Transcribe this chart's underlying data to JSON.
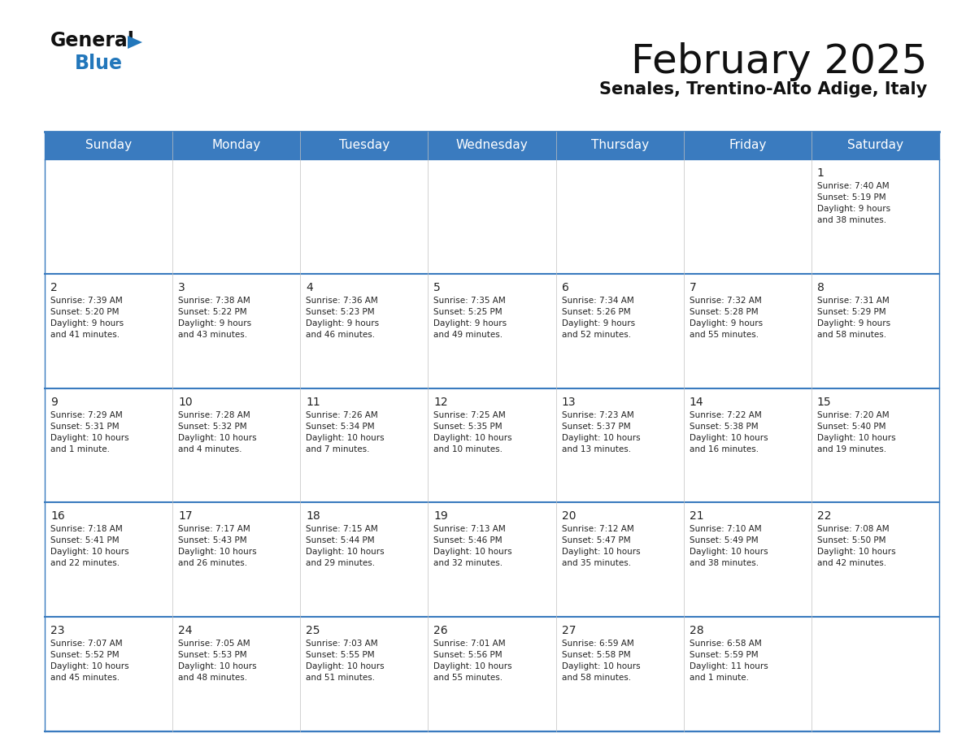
{
  "title": "February 2025",
  "subtitle": "Senales, Trentino-Alto Adige, Italy",
  "header_bg": "#3a7bbf",
  "header_text": "#ffffff",
  "cell_bg_white": "#ffffff",
  "border_color": "#3a7bbf",
  "text_color": "#222222",
  "days_of_week": [
    "Sunday",
    "Monday",
    "Tuesday",
    "Wednesday",
    "Thursday",
    "Friday",
    "Saturday"
  ],
  "weeks": [
    [
      {
        "day": null,
        "info": null
      },
      {
        "day": null,
        "info": null
      },
      {
        "day": null,
        "info": null
      },
      {
        "day": null,
        "info": null
      },
      {
        "day": null,
        "info": null
      },
      {
        "day": null,
        "info": null
      },
      {
        "day": 1,
        "info": "Sunrise: 7:40 AM\nSunset: 5:19 PM\nDaylight: 9 hours\nand 38 minutes."
      }
    ],
    [
      {
        "day": 2,
        "info": "Sunrise: 7:39 AM\nSunset: 5:20 PM\nDaylight: 9 hours\nand 41 minutes."
      },
      {
        "day": 3,
        "info": "Sunrise: 7:38 AM\nSunset: 5:22 PM\nDaylight: 9 hours\nand 43 minutes."
      },
      {
        "day": 4,
        "info": "Sunrise: 7:36 AM\nSunset: 5:23 PM\nDaylight: 9 hours\nand 46 minutes."
      },
      {
        "day": 5,
        "info": "Sunrise: 7:35 AM\nSunset: 5:25 PM\nDaylight: 9 hours\nand 49 minutes."
      },
      {
        "day": 6,
        "info": "Sunrise: 7:34 AM\nSunset: 5:26 PM\nDaylight: 9 hours\nand 52 minutes."
      },
      {
        "day": 7,
        "info": "Sunrise: 7:32 AM\nSunset: 5:28 PM\nDaylight: 9 hours\nand 55 minutes."
      },
      {
        "day": 8,
        "info": "Sunrise: 7:31 AM\nSunset: 5:29 PM\nDaylight: 9 hours\nand 58 minutes."
      }
    ],
    [
      {
        "day": 9,
        "info": "Sunrise: 7:29 AM\nSunset: 5:31 PM\nDaylight: 10 hours\nand 1 minute."
      },
      {
        "day": 10,
        "info": "Sunrise: 7:28 AM\nSunset: 5:32 PM\nDaylight: 10 hours\nand 4 minutes."
      },
      {
        "day": 11,
        "info": "Sunrise: 7:26 AM\nSunset: 5:34 PM\nDaylight: 10 hours\nand 7 minutes."
      },
      {
        "day": 12,
        "info": "Sunrise: 7:25 AM\nSunset: 5:35 PM\nDaylight: 10 hours\nand 10 minutes."
      },
      {
        "day": 13,
        "info": "Sunrise: 7:23 AM\nSunset: 5:37 PM\nDaylight: 10 hours\nand 13 minutes."
      },
      {
        "day": 14,
        "info": "Sunrise: 7:22 AM\nSunset: 5:38 PM\nDaylight: 10 hours\nand 16 minutes."
      },
      {
        "day": 15,
        "info": "Sunrise: 7:20 AM\nSunset: 5:40 PM\nDaylight: 10 hours\nand 19 minutes."
      }
    ],
    [
      {
        "day": 16,
        "info": "Sunrise: 7:18 AM\nSunset: 5:41 PM\nDaylight: 10 hours\nand 22 minutes."
      },
      {
        "day": 17,
        "info": "Sunrise: 7:17 AM\nSunset: 5:43 PM\nDaylight: 10 hours\nand 26 minutes."
      },
      {
        "day": 18,
        "info": "Sunrise: 7:15 AM\nSunset: 5:44 PM\nDaylight: 10 hours\nand 29 minutes."
      },
      {
        "day": 19,
        "info": "Sunrise: 7:13 AM\nSunset: 5:46 PM\nDaylight: 10 hours\nand 32 minutes."
      },
      {
        "day": 20,
        "info": "Sunrise: 7:12 AM\nSunset: 5:47 PM\nDaylight: 10 hours\nand 35 minutes."
      },
      {
        "day": 21,
        "info": "Sunrise: 7:10 AM\nSunset: 5:49 PM\nDaylight: 10 hours\nand 38 minutes."
      },
      {
        "day": 22,
        "info": "Sunrise: 7:08 AM\nSunset: 5:50 PM\nDaylight: 10 hours\nand 42 minutes."
      }
    ],
    [
      {
        "day": 23,
        "info": "Sunrise: 7:07 AM\nSunset: 5:52 PM\nDaylight: 10 hours\nand 45 minutes."
      },
      {
        "day": 24,
        "info": "Sunrise: 7:05 AM\nSunset: 5:53 PM\nDaylight: 10 hours\nand 48 minutes."
      },
      {
        "day": 25,
        "info": "Sunrise: 7:03 AM\nSunset: 5:55 PM\nDaylight: 10 hours\nand 51 minutes."
      },
      {
        "day": 26,
        "info": "Sunrise: 7:01 AM\nSunset: 5:56 PM\nDaylight: 10 hours\nand 55 minutes."
      },
      {
        "day": 27,
        "info": "Sunrise: 6:59 AM\nSunset: 5:58 PM\nDaylight: 10 hours\nand 58 minutes."
      },
      {
        "day": 28,
        "info": "Sunrise: 6:58 AM\nSunset: 5:59 PM\nDaylight: 11 hours\nand 1 minute."
      },
      {
        "day": null,
        "info": null
      }
    ]
  ],
  "logo_text_general": "General",
  "logo_text_blue": "Blue",
  "logo_color_general": "#111111",
  "logo_color_blue": "#2277bb",
  "logo_triangle_color": "#2277bb",
  "title_fontsize": 36,
  "subtitle_fontsize": 15,
  "header_fontsize": 11,
  "day_number_fontsize": 10,
  "cell_text_fontsize": 7.5
}
